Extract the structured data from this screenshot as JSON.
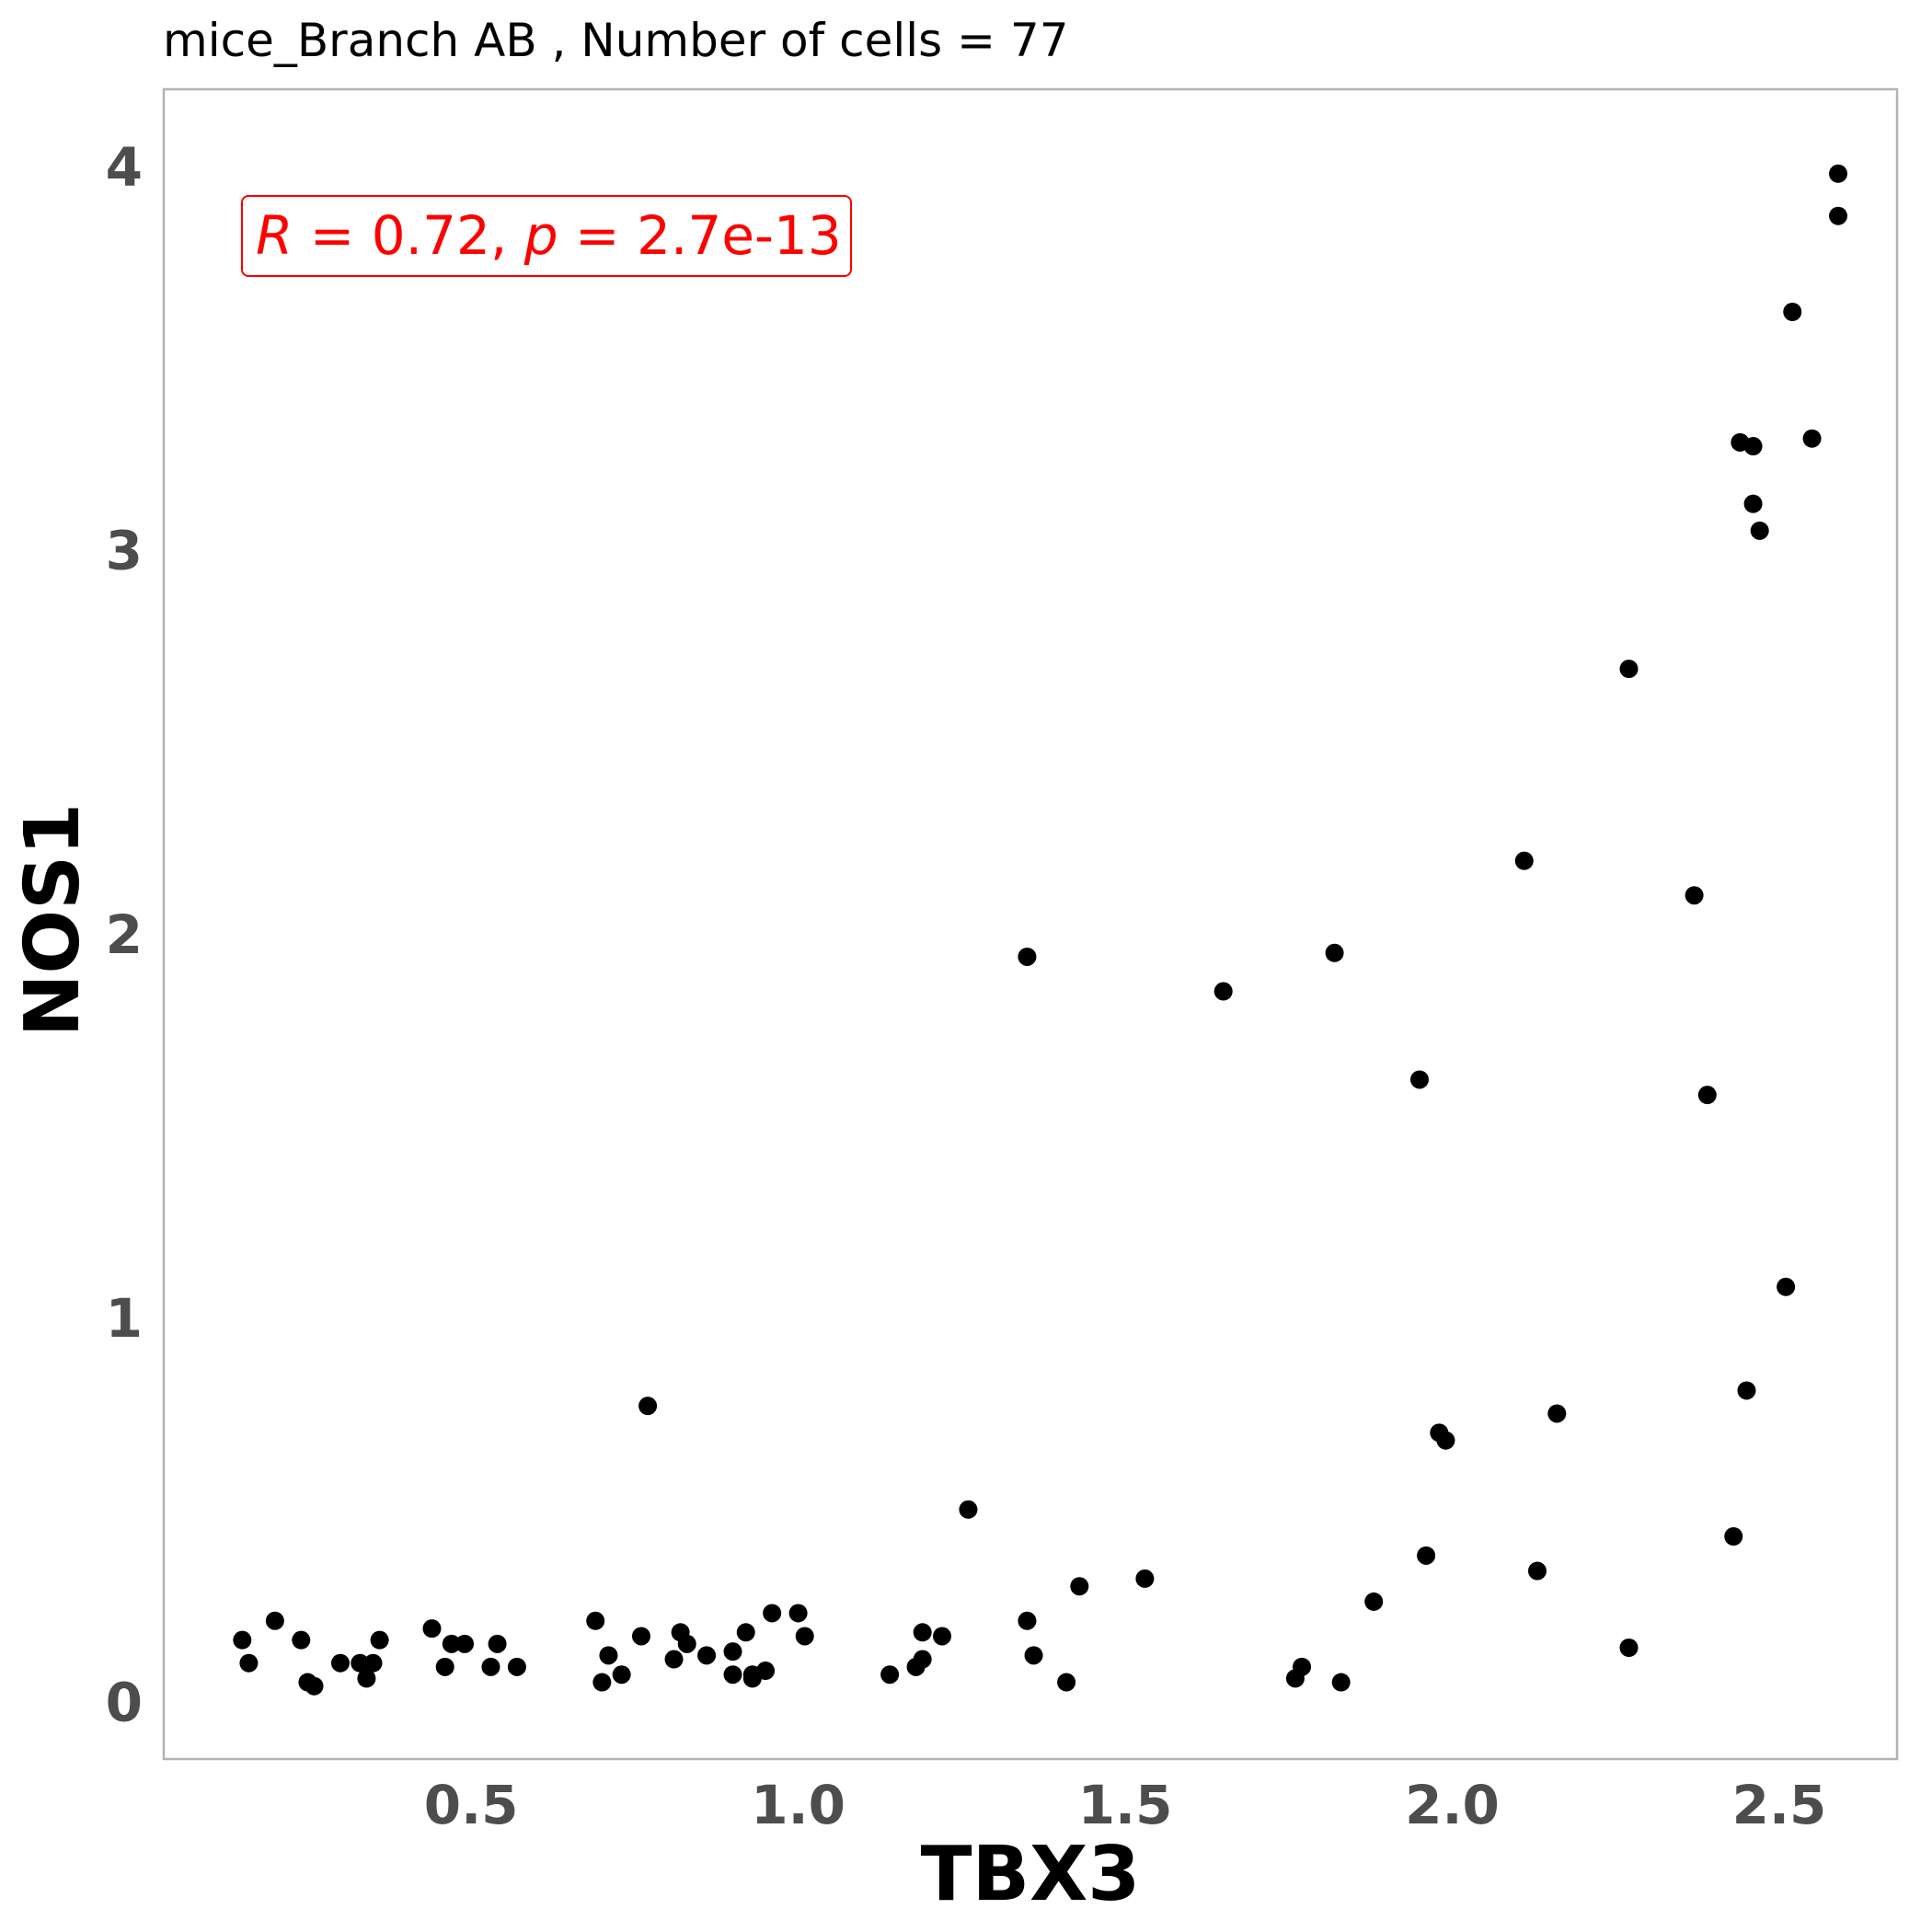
{
  "chart_data": {
    "type": "scatter",
    "title": "mice_Branch AB , Number of cells =  77",
    "xlabel": "TBX3",
    "ylabel": "NOS1",
    "xlim": [
      0.03,
      2.68
    ],
    "ylim": [
      -0.15,
      4.2
    ],
    "x_ticks": [
      0.5,
      1.0,
      1.5,
      2.0,
      2.5
    ],
    "x_tick_labels": [
      "0.5",
      "1.0",
      "1.5",
      "2.0",
      "2.5"
    ],
    "y_ticks": [
      0,
      1,
      2,
      3,
      4
    ],
    "y_tick_labels": [
      "0",
      "1",
      "2",
      "3",
      "4"
    ],
    "grid": false,
    "annotation": {
      "R_symbol": "R",
      "R_text": " = 0.72, ",
      "p_symbol": "p",
      "p_text": " = 2.7e-13"
    },
    "colors": {
      "points": "#000000",
      "annotation": "#ff0000",
      "frame": "#b3b3b3",
      "tick_text": "#4d4d4d"
    },
    "series": [
      {
        "points": [
          [
            0.15,
            0.16
          ],
          [
            0.16,
            0.1
          ],
          [
            0.2,
            0.21
          ],
          [
            0.24,
            0.16
          ],
          [
            0.25,
            0.05
          ],
          [
            0.26,
            0.04
          ],
          [
            0.3,
            0.1
          ],
          [
            0.33,
            0.1
          ],
          [
            0.34,
            0.06
          ],
          [
            0.35,
            0.1
          ],
          [
            0.36,
            0.16
          ],
          [
            0.44,
            0.19
          ],
          [
            0.46,
            0.09
          ],
          [
            0.47,
            0.15
          ],
          [
            0.49,
            0.15
          ],
          [
            0.53,
            0.09
          ],
          [
            0.54,
            0.15
          ],
          [
            0.57,
            0.09
          ],
          [
            0.69,
            0.21
          ],
          [
            0.7,
            0.05
          ],
          [
            0.71,
            0.12
          ],
          [
            0.73,
            0.07
          ],
          [
            0.76,
            0.17
          ],
          [
            0.77,
            0.77
          ],
          [
            0.81,
            0.11
          ],
          [
            0.82,
            0.18
          ],
          [
            0.83,
            0.15
          ],
          [
            0.86,
            0.12
          ],
          [
            0.9,
            0.07
          ],
          [
            0.9,
            0.13
          ],
          [
            0.92,
            0.18
          ],
          [
            0.93,
            0.06
          ],
          [
            0.93,
            0.07
          ],
          [
            0.95,
            0.08
          ],
          [
            0.96,
            0.23
          ],
          [
            1.0,
            0.23
          ],
          [
            1.01,
            0.17
          ],
          [
            1.14,
            0.07
          ],
          [
            1.18,
            0.09
          ],
          [
            1.19,
            0.11
          ],
          [
            1.19,
            0.18
          ],
          [
            1.22,
            0.17
          ],
          [
            1.26,
            0.5
          ],
          [
            1.35,
            1.94
          ],
          [
            1.35,
            0.21
          ],
          [
            1.36,
            0.12
          ],
          [
            1.41,
            0.05
          ],
          [
            1.43,
            0.3
          ],
          [
            1.53,
            0.32
          ],
          [
            1.65,
            1.85
          ],
          [
            1.76,
            0.06
          ],
          [
            1.77,
            0.09
          ],
          [
            1.82,
            1.95
          ],
          [
            1.83,
            0.05
          ],
          [
            1.88,
            0.26
          ],
          [
            1.95,
            1.62
          ],
          [
            1.96,
            0.38
          ],
          [
            1.98,
            0.7
          ],
          [
            1.99,
            0.68
          ],
          [
            2.11,
            2.19
          ],
          [
            2.13,
            0.34
          ],
          [
            2.16,
            0.75
          ],
          [
            2.27,
            2.69
          ],
          [
            2.27,
            0.14
          ],
          [
            2.37,
            2.1
          ],
          [
            2.39,
            1.58
          ],
          [
            2.43,
            0.43
          ],
          [
            2.44,
            3.28
          ],
          [
            2.45,
            0.81
          ],
          [
            2.46,
            3.27
          ],
          [
            2.46,
            3.12
          ],
          [
            2.47,
            3.05
          ],
          [
            2.51,
            1.08
          ],
          [
            2.52,
            3.62
          ],
          [
            2.55,
            3.29
          ],
          [
            2.59,
            3.87
          ],
          [
            2.59,
            3.98
          ]
        ]
      }
    ]
  }
}
